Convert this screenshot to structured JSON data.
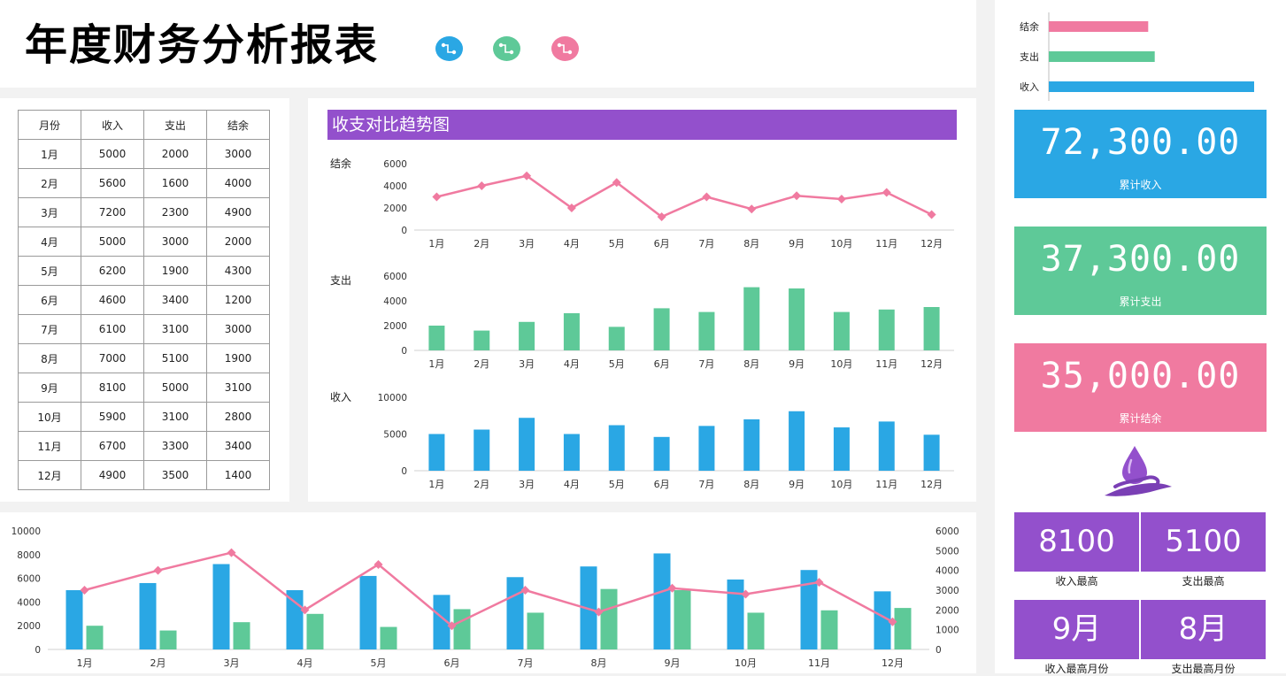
{
  "page_title": "年度财务分析报表",
  "colors": {
    "income": "#2aa7e4",
    "expense": "#5ec998",
    "balance": "#f07aa0",
    "purple": "#9350cc"
  },
  "header_icons": [
    "blue-link-icon",
    "green-link-icon",
    "pink-link-icon"
  ],
  "table": {
    "headers": [
      "月份",
      "收入",
      "支出",
      "结余"
    ],
    "rows": [
      [
        "1月",
        "5000",
        "2000",
        "3000"
      ],
      [
        "2月",
        "5600",
        "1600",
        "4000"
      ],
      [
        "3月",
        "7200",
        "2300",
        "4900"
      ],
      [
        "4月",
        "5000",
        "3000",
        "2000"
      ],
      [
        "5月",
        "6200",
        "1900",
        "4300"
      ],
      [
        "6月",
        "4600",
        "3400",
        "1200"
      ],
      [
        "7月",
        "6100",
        "3100",
        "3000"
      ],
      [
        "8月",
        "7000",
        "5100",
        "1900"
      ],
      [
        "9月",
        "8100",
        "5000",
        "3100"
      ],
      [
        "10月",
        "5900",
        "3100",
        "2800"
      ],
      [
        "11月",
        "6700",
        "3300",
        "3400"
      ],
      [
        "12月",
        "4900",
        "3500",
        "1400"
      ]
    ]
  },
  "trend": {
    "title": "收支对比趋势图",
    "row_labels": {
      "balance": "结余",
      "expense": "支出",
      "income": "收入"
    }
  },
  "kpis": [
    {
      "value": "72,300.00",
      "label": "累计收入",
      "color": "#2aa7e4"
    },
    {
      "value": "37,300.00",
      "label": "累计支出",
      "color": "#5ec998"
    },
    {
      "value": "35,000.00",
      "label": "累计结余",
      "color": "#f07aa0"
    }
  ],
  "stats": [
    {
      "value": "8100",
      "label": "收入最高"
    },
    {
      "value": "5100",
      "label": "支出最高"
    },
    {
      "value": "9月",
      "label": "收入最高月份"
    },
    {
      "value": "8月",
      "label": "支出最高月份"
    }
  ],
  "chart_data": [
    {
      "type": "bar",
      "orientation": "horizontal",
      "categories": [
        "结余",
        "支出",
        "收入"
      ],
      "values": [
        35000,
        37300,
        72300
      ],
      "colors": [
        "#f07aa0",
        "#5ec998",
        "#2aa7e4"
      ]
    },
    {
      "type": "line",
      "categories": [
        "1月",
        "2月",
        "3月",
        "4月",
        "5月",
        "6月",
        "7月",
        "8月",
        "9月",
        "10月",
        "11月",
        "12月"
      ],
      "values": [
        3000,
        4000,
        4900,
        2000,
        4300,
        1200,
        3000,
        1900,
        3100,
        2800,
        3400,
        1400
      ],
      "yticks": [
        0,
        2000,
        4000,
        6000
      ],
      "ylim": [
        0,
        6000
      ],
      "color": "#f07aa0"
    },
    {
      "type": "bar",
      "categories": [
        "1月",
        "2月",
        "3月",
        "4月",
        "5月",
        "6月",
        "7月",
        "8月",
        "9月",
        "10月",
        "11月",
        "12月"
      ],
      "values": [
        2000,
        1600,
        2300,
        3000,
        1900,
        3400,
        3100,
        5100,
        5000,
        3100,
        3300,
        3500
      ],
      "yticks": [
        0,
        2000,
        4000,
        6000
      ],
      "ylim": [
        0,
        6000
      ],
      "color": "#5ec998"
    },
    {
      "type": "bar",
      "categories": [
        "1月",
        "2月",
        "3月",
        "4月",
        "5月",
        "6月",
        "7月",
        "8月",
        "9月",
        "10月",
        "11月",
        "12月"
      ],
      "values": [
        5000,
        5600,
        7200,
        5000,
        6200,
        4600,
        6100,
        7000,
        8100,
        5900,
        6700,
        4900
      ],
      "yticks": [
        0,
        5000,
        10000
      ],
      "ylim": [
        0,
        10000
      ],
      "color": "#2aa7e4"
    },
    {
      "type": "bar",
      "categories": [
        "1月",
        "2月",
        "3月",
        "4月",
        "5月",
        "6月",
        "7月",
        "8月",
        "9月",
        "10月",
        "11月",
        "12月"
      ],
      "series": [
        {
          "values": [
            5000,
            5600,
            7200,
            5000,
            6200,
            4600,
            6100,
            7000,
            8100,
            5900,
            6700,
            4900
          ],
          "color": "#2aa7e4",
          "type": "bar",
          "axis": "left"
        },
        {
          "values": [
            2000,
            1600,
            2300,
            3000,
            1900,
            3400,
            3100,
            5100,
            5000,
            3100,
            3300,
            3500
          ],
          "color": "#5ec998",
          "type": "bar",
          "axis": "left"
        },
        {
          "values": [
            3000,
            4000,
            4900,
            2000,
            4300,
            1200,
            3000,
            1900,
            3100,
            2800,
            3400,
            1400
          ],
          "color": "#f07aa0",
          "type": "line",
          "axis": "right"
        }
      ],
      "yticks_left": [
        0,
        2000,
        4000,
        6000,
        8000,
        10000
      ],
      "ylim_left": [
        0,
        10000
      ],
      "yticks_right": [
        0,
        1000,
        2000,
        3000,
        4000,
        5000,
        6000
      ],
      "ylim_right": [
        0,
        6000
      ]
    }
  ]
}
